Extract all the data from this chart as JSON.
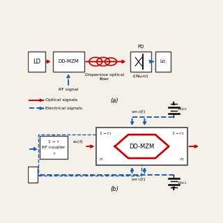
{
  "bg_color": "#f5f0e8",
  "optical_color": "#cc0000",
  "electrical_color": "#1a5fb0",
  "box_edge_color": "#444444",
  "legend_optical": "Optical signals",
  "legend_electrical": "Electrical signals",
  "label_a": "(a)",
  "label_b": "(b)"
}
